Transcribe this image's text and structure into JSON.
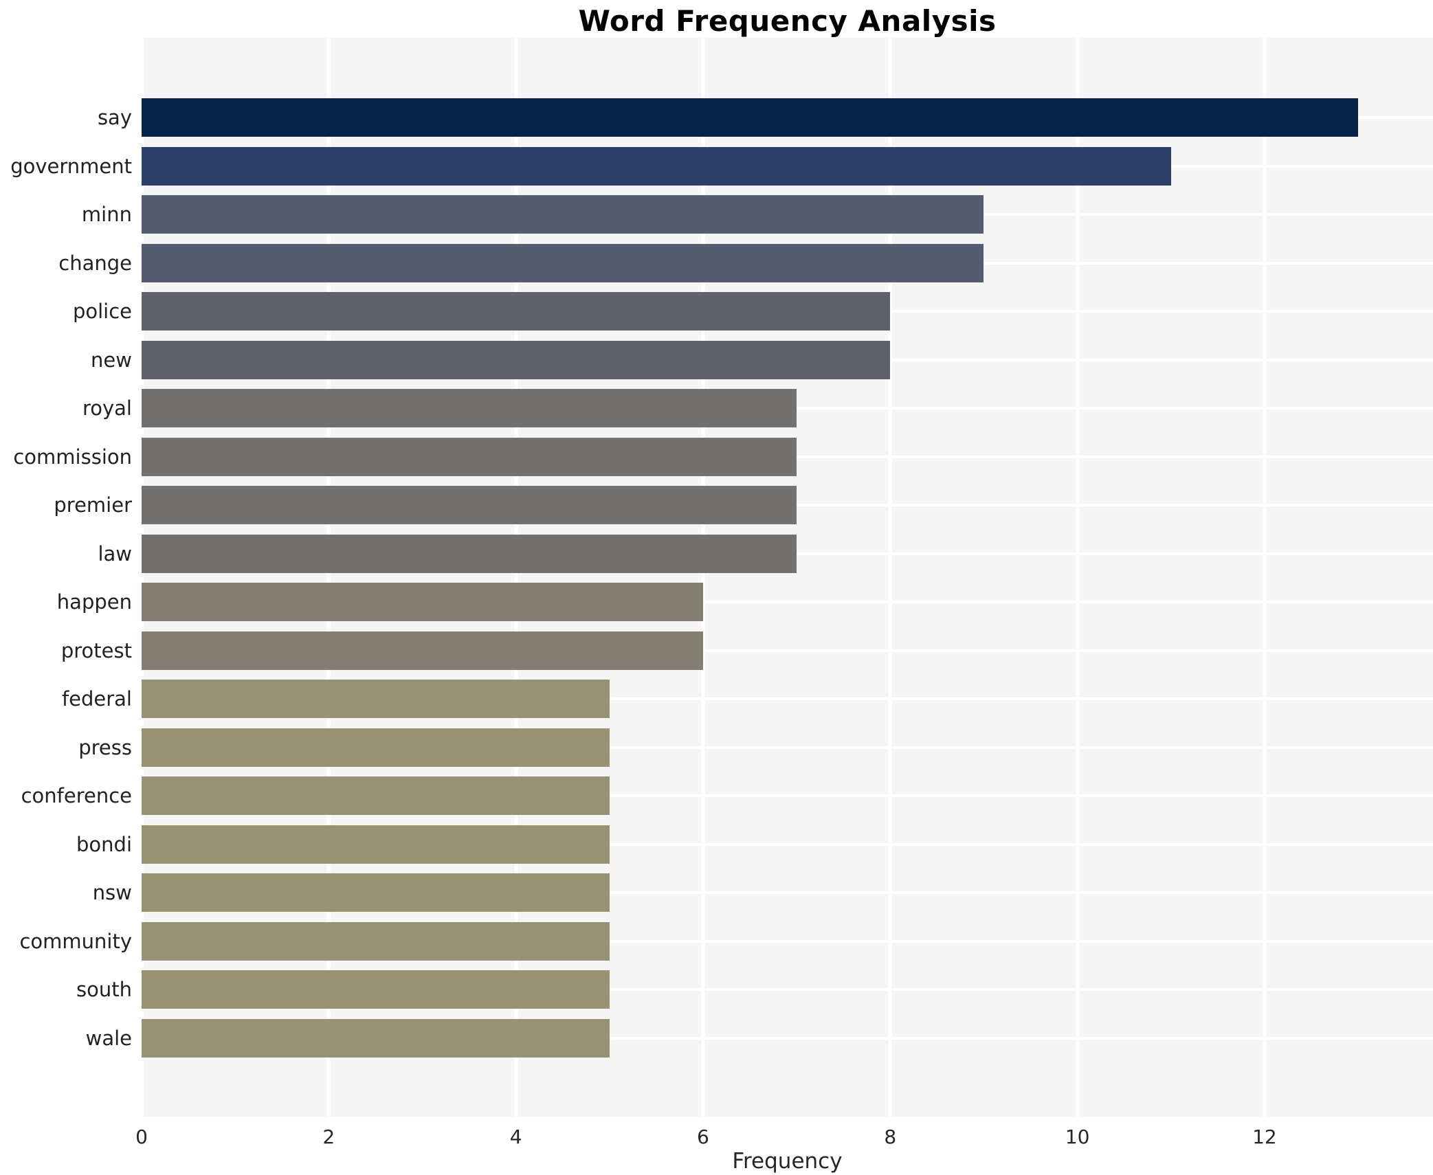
{
  "chart_data": {
    "type": "bar",
    "orientation": "horizontal",
    "title": "Word Frequency Analysis",
    "xlabel": "Frequency",
    "ylabel": "",
    "categories": [
      "say",
      "government",
      "minn",
      "change",
      "police",
      "new",
      "royal",
      "commission",
      "premier",
      "law",
      "happen",
      "protest",
      "federal",
      "press",
      "conference",
      "bondi",
      "nsw",
      "community",
      "south",
      "wale"
    ],
    "values": [
      13,
      11,
      9,
      9,
      8,
      8,
      7,
      7,
      7,
      7,
      6,
      6,
      5,
      5,
      5,
      5,
      5,
      5,
      5,
      5
    ],
    "colors": [
      "#062349",
      "#2b3f68",
      "#545c72",
      "#545c72",
      "#5f626c",
      "#5f626c",
      "#737170",
      "#737170",
      "#737170",
      "#737170",
      "#837e72",
      "#837e72",
      "#989174",
      "#989174",
      "#989174",
      "#989174",
      "#989174",
      "#989174",
      "#989174",
      "#989174"
    ],
    "x_ticks": [
      0,
      2,
      4,
      6,
      8,
      10,
      12
    ],
    "xlim": [
      0,
      13.8
    ],
    "grid": true,
    "legend": false,
    "panel_bg": "#f5f5f6",
    "grid_color": "#ffffff"
  }
}
